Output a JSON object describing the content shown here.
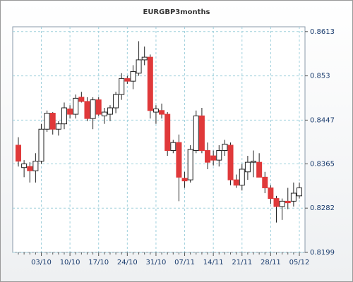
{
  "chart_data": {
    "type": "candlestick",
    "title": "EURGBP3months",
    "categories": [
      null,
      null,
      null,
      null,
      "03/10",
      null,
      null,
      null,
      null,
      "10/10",
      null,
      null,
      null,
      null,
      "17/10",
      null,
      null,
      null,
      null,
      "24/10",
      null,
      null,
      null,
      null,
      "31/10",
      null,
      null,
      null,
      null,
      "07/11",
      null,
      null,
      null,
      null,
      "14/11",
      null,
      null,
      null,
      null,
      "21/11",
      null,
      null,
      null,
      null,
      "28/11",
      null,
      null,
      null,
      null,
      "05/12"
    ],
    "open": [
      0.84,
      0.8358,
      0.836,
      0.8352,
      0.837,
      0.843,
      0.846,
      0.843,
      0.844,
      0.8468,
      0.8458,
      0.849,
      0.8482,
      0.845,
      0.8485,
      0.8455,
      0.8458,
      0.847,
      0.8495,
      0.8525,
      0.852,
      0.8535,
      0.856,
      0.8565,
      0.8462,
      0.8465,
      0.8458,
      0.839,
      0.8405,
      0.8338,
      0.8335,
      0.839,
      0.8455,
      0.839,
      0.838,
      0.8372,
      0.839,
      0.84,
      0.8335,
      0.8325,
      0.835,
      0.8368,
      0.8368,
      0.834,
      0.832,
      0.83,
      0.8285,
      0.8295,
      0.8295,
      0.8305
    ],
    "high": [
      0.8415,
      0.8372,
      0.8368,
      0.8385,
      0.844,
      0.8465,
      0.8462,
      0.8445,
      0.848,
      0.8475,
      0.8495,
      0.85,
      0.849,
      0.849,
      0.849,
      0.847,
      0.8475,
      0.85,
      0.8535,
      0.853,
      0.855,
      0.8595,
      0.8585,
      0.857,
      0.8475,
      0.8478,
      0.8462,
      0.841,
      0.842,
      0.835,
      0.84,
      0.8465,
      0.847,
      0.8405,
      0.839,
      0.84,
      0.841,
      0.8405,
      0.8345,
      0.8365,
      0.838,
      0.839,
      0.8385,
      0.835,
      0.8325,
      0.8305,
      0.83,
      0.832,
      0.833,
      0.833
    ],
    "low": [
      0.836,
      0.834,
      0.833,
      0.833,
      0.8365,
      0.8425,
      0.842,
      0.8418,
      0.843,
      0.845,
      0.845,
      0.848,
      0.8445,
      0.843,
      0.8455,
      0.844,
      0.8445,
      0.846,
      0.8485,
      0.8515,
      0.8505,
      0.853,
      0.855,
      0.845,
      0.844,
      0.845,
      0.838,
      0.8385,
      0.8295,
      0.832,
      0.833,
      0.8385,
      0.8385,
      0.8355,
      0.8362,
      0.836,
      0.838,
      0.8325,
      0.832,
      0.8315,
      0.8335,
      0.834,
      0.834,
      0.831,
      0.829,
      0.8255,
      0.826,
      0.828,
      0.8285,
      0.83
    ],
    "close": [
      0.837,
      0.8365,
      0.8352,
      0.837,
      0.843,
      0.846,
      0.843,
      0.844,
      0.847,
      0.8458,
      0.8488,
      0.8482,
      0.845,
      0.8485,
      0.8458,
      0.8462,
      0.847,
      0.8495,
      0.8525,
      0.852,
      0.8538,
      0.856,
      0.8565,
      0.8465,
      0.8468,
      0.8458,
      0.839,
      0.8405,
      0.834,
      0.8333,
      0.8392,
      0.8455,
      0.839,
      0.8368,
      0.8372,
      0.839,
      0.8402,
      0.8335,
      0.8325,
      0.8355,
      0.8368,
      0.837,
      0.834,
      0.832,
      0.83,
      0.8285,
      0.8295,
      0.8292,
      0.831,
      0.832
    ],
    "up_color": "#ffffff",
    "down_color": "#e0393a",
    "ylim": [
      0.8199,
      0.8622
    ],
    "yticks": [
      0.8199,
      0.8282,
      0.8365,
      0.8447,
      0.853,
      0.8613
    ],
    "grid": true
  }
}
